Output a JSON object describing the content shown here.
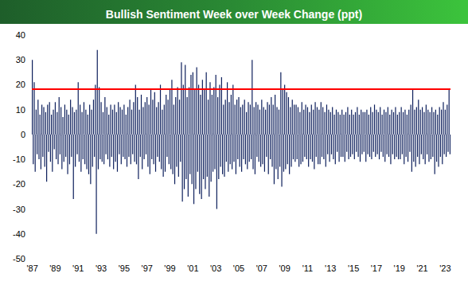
{
  "chart_data": {
    "type": "bar",
    "title": "Bullish Sentiment Week over Week Change (ppt)",
    "color": "#0d1f5c",
    "grid": false,
    "ylim": [
      -50,
      40
    ],
    "yticks": [
      -50,
      -40,
      -30,
      -20,
      -10,
      0,
      10,
      20,
      30,
      40
    ],
    "reference_line": {
      "value": 18.3,
      "color": "#ff0000"
    },
    "categories": [
      "'87",
      null,
      null,
      null,
      null,
      null,
      null,
      null,
      null,
      null,
      null,
      null,
      null,
      null,
      null,
      null,
      null,
      null,
      null,
      null,
      null,
      null,
      null,
      null,
      "'89",
      null,
      null,
      null,
      null,
      null,
      null,
      null,
      null,
      null,
      null,
      null,
      null,
      null,
      null,
      null,
      null,
      null,
      null,
      null,
      null,
      null,
      null,
      null,
      "'91",
      null,
      null,
      null,
      null,
      null,
      null,
      null,
      null,
      null,
      null,
      null,
      null,
      null,
      null,
      null,
      null,
      null,
      null,
      null,
      null,
      null,
      null,
      null,
      "'93",
      null,
      null,
      null,
      null,
      null,
      null,
      null,
      null,
      null,
      null,
      null,
      null,
      null,
      null,
      null,
      null,
      null,
      null,
      null,
      null,
      null,
      null,
      null,
      "'95",
      null,
      null,
      null,
      null,
      null,
      null,
      null,
      null,
      null,
      null,
      null,
      null,
      null,
      null,
      null,
      null,
      null,
      null,
      null,
      null,
      null,
      null,
      null,
      "'97",
      null,
      null,
      null,
      null,
      null,
      null,
      null,
      null,
      null,
      null,
      null,
      null,
      null,
      null,
      null,
      null,
      null,
      null,
      null,
      null,
      null,
      null,
      null,
      "'99",
      null,
      null,
      null,
      null,
      null,
      null,
      null,
      null,
      null,
      null,
      null,
      null,
      null,
      null,
      null,
      null,
      null,
      null,
      null,
      null,
      null,
      null,
      null,
      "'01",
      null,
      null,
      null,
      null,
      null,
      null,
      null,
      null,
      null,
      null,
      null,
      null,
      null,
      null,
      null,
      null,
      null,
      null,
      null,
      null,
      null,
      null,
      null,
      "'03",
      null,
      null,
      null,
      null,
      null,
      null,
      null,
      null,
      null,
      null,
      null,
      null,
      null,
      null,
      null,
      null,
      null,
      null,
      null,
      null,
      null,
      null,
      null,
      "'05",
      null,
      null,
      null,
      null,
      null,
      null,
      null,
      null,
      null,
      null,
      null,
      null,
      null,
      null,
      null,
      null,
      null,
      null,
      null,
      null,
      null,
      null,
      null,
      "'07",
      null,
      null,
      null,
      null,
      null,
      null,
      null,
      null,
      null,
      null,
      null,
      null,
      null,
      null,
      null,
      null,
      null,
      null,
      null,
      null,
      null,
      null,
      null,
      "'09",
      null,
      null,
      null,
      null,
      null,
      null,
      null,
      null,
      null,
      null,
      null,
      null,
      null,
      null,
      null,
      null,
      null,
      null,
      null,
      null,
      null,
      null,
      null,
      "'11",
      null,
      null,
      null,
      null,
      null,
      null,
      null,
      null,
      null,
      null,
      null,
      null,
      null,
      null,
      null,
      null,
      null,
      null,
      null,
      null,
      null,
      null,
      null,
      "'13",
      null,
      null,
      null,
      null,
      null,
      null,
      null,
      null,
      null,
      null,
      null,
      null,
      null,
      null,
      null,
      null,
      null,
      null,
      null,
      null,
      null,
      null,
      null,
      "'15",
      null,
      null,
      null,
      null,
      null,
      null,
      null,
      null,
      null,
      null,
      null,
      null,
      null,
      null,
      null,
      null,
      null,
      null,
      null,
      null,
      null,
      null,
      null,
      "'17",
      null,
      null,
      null,
      null,
      null,
      null,
      null,
      null,
      null,
      null,
      null,
      null,
      null,
      null,
      null,
      null,
      null,
      null,
      null,
      null,
      null,
      null,
      null,
      "'19",
      null,
      null,
      null,
      null,
      null,
      null,
      null,
      null,
      null,
      null,
      null,
      null,
      null,
      null,
      null,
      null,
      null,
      null,
      null,
      null,
      null,
      null,
      null,
      "'21",
      null,
      null,
      null,
      null,
      null,
      null,
      null,
      null,
      null,
      null,
      null,
      null,
      null,
      null,
      null,
      null,
      null,
      null,
      null,
      null,
      null,
      null,
      null,
      "'23",
      null,
      null,
      null,
      null,
      null
    ],
    "values": [
      30,
      -12,
      21,
      -15,
      10,
      -8,
      14,
      -10,
      8,
      -14,
      12,
      -9,
      11,
      -13,
      9,
      -19,
      12,
      -7,
      13,
      -11,
      8,
      -15,
      10,
      -6,
      13,
      -10,
      9,
      -12,
      15,
      -8,
      11,
      -14,
      7,
      -11,
      12,
      -9,
      10,
      -16,
      8,
      -12,
      14,
      -9,
      11,
      -26,
      9,
      -13,
      10,
      -8,
      21,
      -11,
      12,
      -15,
      9,
      -10,
      13,
      -12,
      10,
      -14,
      8,
      -16,
      12,
      -20,
      10,
      -13,
      14,
      -9,
      20,
      -40,
      34,
      -14,
      19,
      -10,
      13,
      -11,
      9,
      -12,
      15,
      -8,
      11,
      -10,
      8,
      -13,
      12,
      -9,
      10,
      -14,
      12,
      -11,
      9,
      -15,
      13,
      -8,
      11,
      -12,
      10,
      -9,
      12,
      -10,
      8,
      -13,
      11,
      -9,
      14,
      -12,
      10,
      -8,
      13,
      -11,
      20,
      -12,
      15,
      -18,
      10,
      -9,
      16,
      -14,
      11,
      -10,
      13,
      -8,
      15,
      -13,
      12,
      -16,
      18,
      -10,
      14,
      -12,
      17,
      -15,
      11,
      -9,
      13,
      -11,
      20,
      -14,
      10,
      -17,
      12,
      -15,
      16,
      -9,
      14,
      -12,
      18,
      -14,
      22,
      -16,
      12,
      -20,
      15,
      -13,
      19,
      -17,
      14,
      -11,
      29,
      -27,
      20,
      -22,
      28,
      -18,
      15,
      -25,
      19,
      -16,
      24,
      -20,
      25,
      -28,
      18,
      -22,
      27,
      -15,
      20,
      -24,
      16,
      -26,
      22,
      -18,
      18,
      -22,
      25,
      -17,
      14,
      -25,
      21,
      -19,
      16,
      -15,
      19,
      -14,
      24,
      -30,
      15,
      -18,
      20,
      -13,
      23,
      -16,
      12,
      -17,
      14,
      -11,
      21,
      -15,
      13,
      -12,
      16,
      -14,
      20,
      -11,
      12,
      -16,
      14,
      -10,
      15,
      -13,
      11,
      -15,
      12,
      -10,
      14,
      -12,
      9,
      -14,
      13,
      -11,
      12,
      -10,
      30,
      -14,
      11,
      -16,
      13,
      -9,
      12,
      -11,
      10,
      -13,
      14,
      -12,
      11,
      -15,
      10,
      -9,
      13,
      -16,
      12,
      -10,
      15,
      -13,
      12,
      -20,
      16,
      -14,
      11,
      -18,
      10,
      -13,
      25,
      -21,
      18,
      -15,
      20,
      -14,
      17,
      -12,
      15,
      -16,
      11,
      -13,
      14,
      -10,
      12,
      -11,
      12,
      -10,
      11,
      -13,
      9,
      -12,
      13,
      -11,
      10,
      -9,
      12,
      -10,
      11,
      -13,
      9,
      -10,
      12,
      -11,
      10,
      -14,
      13,
      -9,
      11,
      -12,
      10,
      -12,
      13,
      -9,
      11,
      -10,
      9,
      -13,
      12,
      -8,
      10,
      -11,
      9,
      -8,
      11,
      -10,
      8,
      -12,
      10,
      -7,
      9,
      -11,
      8,
      -9,
      10,
      -9,
      8,
      -11,
      9,
      -7,
      11,
      -10,
      8,
      -9,
      10,
      -8,
      8,
      -10,
      9,
      -7,
      11,
      -9,
      8,
      -11,
      10,
      -8,
      9,
      -7,
      9,
      -11,
      10,
      -8,
      8,
      -9,
      11,
      -10,
      9,
      -7,
      12,
      -9,
      10,
      -8,
      9,
      -10,
      11,
      -7,
      8,
      -9,
      10,
      -11,
      9,
      -8,
      11,
      -9,
      8,
      -12,
      10,
      -8,
      9,
      -10,
      11,
      -9,
      8,
      -10,
      9,
      -10,
      11,
      -8,
      9,
      -12,
      10,
      -9,
      8,
      -11,
      10,
      -7,
      12,
      -15,
      18,
      -11,
      10,
      -13,
      11,
      -9,
      14,
      -12,
      10,
      -8,
      11,
      -10,
      9,
      -12,
      12,
      -8,
      10,
      -11,
      9,
      -10,
      11,
      -9,
      9,
      -16,
      10,
      -11,
      8,
      -13,
      11,
      -9,
      10,
      -12,
      13,
      -8,
      10,
      -9,
      12,
      -7,
      18,
      -8
    ]
  }
}
